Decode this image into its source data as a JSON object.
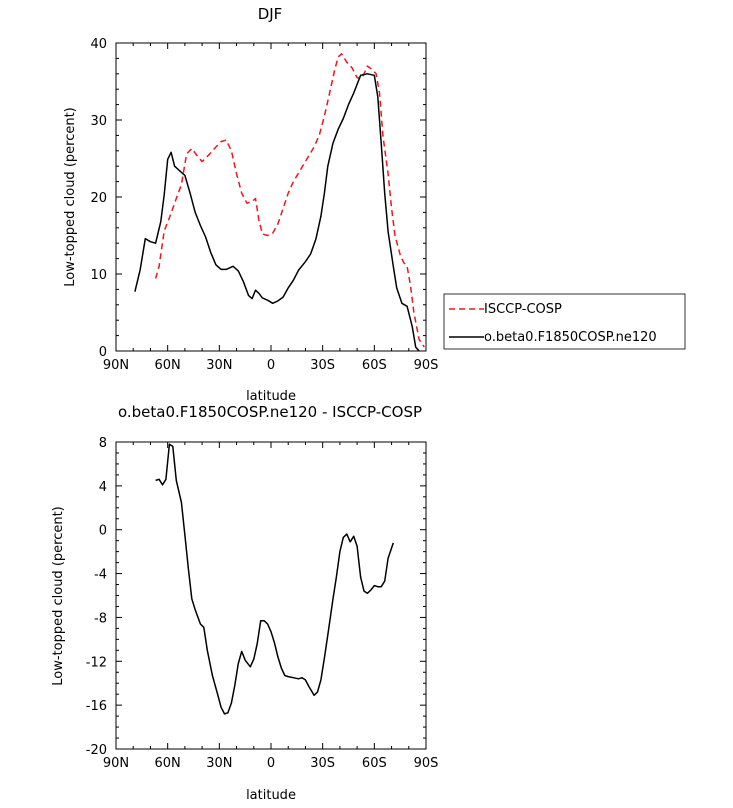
{
  "chart_data": [
    {
      "type": "line",
      "title": "DJF",
      "xlabel": "latitude",
      "ylabel": "Low-topped cloud (percent)",
      "xlim": [
        -90,
        90
      ],
      "ylim": [
        0,
        40
      ],
      "x_ticks": [
        {
          "value": -90,
          "label": "90N"
        },
        {
          "value": -60,
          "label": "60N"
        },
        {
          "value": -30,
          "label": "30N"
        },
        {
          "value": 0,
          "label": "0"
        },
        {
          "value": 30,
          "label": "30S"
        },
        {
          "value": 60,
          "label": "60S"
        },
        {
          "value": 90,
          "label": "90S"
        }
      ],
      "y_ticks": [
        {
          "value": 0,
          "label": "0"
        },
        {
          "value": 10,
          "label": "10"
        },
        {
          "value": 20,
          "label": "20"
        },
        {
          "value": 30,
          "label": "30"
        },
        {
          "value": 40,
          "label": "40"
        }
      ],
      "legend_position": "right",
      "series": [
        {
          "name": "ISCCP-COSP",
          "color": "#e8191e",
          "dash": true,
          "points": [
            [
              -67,
              9.4
            ],
            [
              -65,
              11
            ],
            [
              -62,
              15.6
            ],
            [
              -59,
              17.3
            ],
            [
              -55,
              19.8
            ],
            [
              -52,
              21.6
            ],
            [
              -49,
              25.6
            ],
            [
              -46,
              26.3
            ],
            [
              -43,
              25.4
            ],
            [
              -40,
              24.6
            ],
            [
              -36,
              25.5
            ],
            [
              -32,
              26.5
            ],
            [
              -29,
              27.2
            ],
            [
              -26,
              27.4
            ],
            [
              -23,
              26
            ],
            [
              -20,
              23
            ],
            [
              -17,
              20.5
            ],
            [
              -14,
              19.2
            ],
            [
              -11,
              19.4
            ],
            [
              -9,
              19.8
            ],
            [
              -7,
              17
            ],
            [
              -5,
              15.2
            ],
            [
              -2,
              15
            ],
            [
              1,
              15.3
            ],
            [
              4,
              16.5
            ],
            [
              7,
              18.5
            ],
            [
              10,
              20.5
            ],
            [
              13,
              22
            ],
            [
              17,
              23.5
            ],
            [
              21,
              25
            ],
            [
              25,
              26.5
            ],
            [
              28,
              28
            ],
            [
              31,
              30.5
            ],
            [
              34,
              33.5
            ],
            [
              37,
              36.5
            ],
            [
              39,
              38.2
            ],
            [
              41,
              38.6
            ],
            [
              44,
              37.5
            ],
            [
              47,
              36.8
            ],
            [
              50,
              35.5
            ],
            [
              53,
              35.5
            ],
            [
              56,
              37
            ],
            [
              59,
              36.5
            ],
            [
              61,
              36
            ],
            [
              63,
              33.5
            ],
            [
              65,
              28
            ],
            [
              68,
              23
            ],
            [
              70,
              18.5
            ],
            [
              72,
              15
            ],
            [
              75,
              12.5
            ],
            [
              77,
              11.5
            ],
            [
              79,
              11
            ],
            [
              81,
              8.5
            ],
            [
              83,
              5
            ],
            [
              86,
              1.5
            ],
            [
              89,
              0.5
            ]
          ]
        },
        {
          "name": "o.beta0.F1850COSP.ne120",
          "color": "#000000",
          "dash": false,
          "points": [
            [
              -79,
              7.7
            ],
            [
              -76,
              10.5
            ],
            [
              -73,
              14.6
            ],
            [
              -70,
              14.2
            ],
            [
              -67,
              14
            ],
            [
              -64,
              16.8
            ],
            [
              -62,
              20.3
            ],
            [
              -60,
              24.9
            ],
            [
              -58,
              25.8
            ],
            [
              -56,
              24
            ],
            [
              -53,
              23.4
            ],
            [
              -50,
              22.8
            ],
            [
              -47,
              20.5
            ],
            [
              -44,
              18
            ],
            [
              -41,
              16.3
            ],
            [
              -38,
              14.8
            ],
            [
              -35,
              12.8
            ],
            [
              -32,
              11.2
            ],
            [
              -29,
              10.6
            ],
            [
              -26,
              10.6
            ],
            [
              -22,
              11
            ],
            [
              -19,
              10.4
            ],
            [
              -16,
              9
            ],
            [
              -13,
              7.2
            ],
            [
              -11,
              6.8
            ],
            [
              -9,
              7.9
            ],
            [
              -7,
              7.5
            ],
            [
              -5,
              6.9
            ],
            [
              -2,
              6.6
            ],
            [
              1,
              6.2
            ],
            [
              4,
              6.5
            ],
            [
              7,
              7
            ],
            [
              10,
              8.2
            ],
            [
              13,
              9.2
            ],
            [
              16,
              10.5
            ],
            [
              20,
              11.6
            ],
            [
              23,
              12.6
            ],
            [
              26,
              14.5
            ],
            [
              29,
              17.5
            ],
            [
              31,
              20.5
            ],
            [
              33,
              24
            ],
            [
              36,
              27
            ],
            [
              39,
              28.8
            ],
            [
              42,
              30.2
            ],
            [
              45,
              32
            ],
            [
              48,
              33.5
            ],
            [
              52,
              35.8
            ],
            [
              56,
              36
            ],
            [
              60,
              35.8
            ],
            [
              62,
              33
            ],
            [
              64,
              27
            ],
            [
              66,
              20.5
            ],
            [
              68,
              15.5
            ],
            [
              71,
              11
            ],
            [
              73,
              8.2
            ],
            [
              76,
              6.2
            ],
            [
              79,
              5.8
            ],
            [
              82,
              3.2
            ],
            [
              84,
              0.5
            ],
            [
              86,
              0
            ]
          ]
        }
      ]
    },
    {
      "type": "line",
      "title": "o.beta0.F1850COSP.ne120 - ISCCP-COSP",
      "xlabel": "latitude",
      "ylabel": "Low-topped cloud (percent)",
      "xlim": [
        -90,
        90
      ],
      "ylim": [
        -20,
        8
      ],
      "x_ticks": [
        {
          "value": -90,
          "label": "90N"
        },
        {
          "value": -60,
          "label": "60N"
        },
        {
          "value": -30,
          "label": "30N"
        },
        {
          "value": 0,
          "label": "0"
        },
        {
          "value": 30,
          "label": "30S"
        },
        {
          "value": 60,
          "label": "60S"
        },
        {
          "value": 90,
          "label": "90S"
        }
      ],
      "y_ticks": [
        {
          "value": 8,
          "label": "8"
        },
        {
          "value": 4,
          "label": "4"
        },
        {
          "value": 0,
          "label": "0"
        },
        {
          "value": -4,
          "label": "-4"
        },
        {
          "value": -8,
          "label": "-8"
        },
        {
          "value": -12,
          "label": "-12"
        },
        {
          "value": -16,
          "label": "-16"
        },
        {
          "value": -20,
          "label": "-20"
        }
      ],
      "series": [
        {
          "name": "o.beta0.F1850COSP.ne120 - ISCCP-COSP",
          "color": "#000000",
          "dash": false,
          "points": [
            [
              -67,
              4.5
            ],
            [
              -65,
              4.6
            ],
            [
              -63,
              4.1
            ],
            [
              -61,
              4.6
            ],
            [
              -59,
              7.8
            ],
            [
              -57,
              7.6
            ],
            [
              -55,
              4.5
            ],
            [
              -52,
              2.5
            ],
            [
              -50,
              -0.5
            ],
            [
              -48,
              -3.5
            ],
            [
              -46,
              -6.3
            ],
            [
              -44,
              -7.3
            ],
            [
              -41,
              -8.6
            ],
            [
              -39,
              -8.9
            ],
            [
              -37,
              -11
            ],
            [
              -34,
              -13.3
            ],
            [
              -31,
              -15
            ],
            [
              -29,
              -16.2
            ],
            [
              -27,
              -16.8
            ],
            [
              -25,
              -16.7
            ],
            [
              -23,
              -15.8
            ],
            [
              -21,
              -14.2
            ],
            [
              -19,
              -12.2
            ],
            [
              -17,
              -11.1
            ],
            [
              -15,
              -11.9
            ],
            [
              -12,
              -12.5
            ],
            [
              -10,
              -11.8
            ],
            [
              -8,
              -10.4
            ],
            [
              -6,
              -8.3
            ],
            [
              -4,
              -8.3
            ],
            [
              -2,
              -8.6
            ],
            [
              0,
              -9.3
            ],
            [
              2,
              -10.3
            ],
            [
              4,
              -11.6
            ],
            [
              6,
              -12.6
            ],
            [
              8,
              -13.3
            ],
            [
              10,
              -13.4
            ],
            [
              13,
              -13.5
            ],
            [
              16,
              -13.6
            ],
            [
              18,
              -13.5
            ],
            [
              20,
              -13.7
            ],
            [
              22,
              -14.3
            ],
            [
              25,
              -15.1
            ],
            [
              27,
              -14.8
            ],
            [
              29,
              -13.7
            ],
            [
              31,
              -11.7
            ],
            [
              33,
              -9.6
            ],
            [
              36,
              -6.3
            ],
            [
              38,
              -4.3
            ],
            [
              40,
              -2
            ],
            [
              42,
              -0.7
            ],
            [
              44,
              -0.4
            ],
            [
              46,
              -1.1
            ],
            [
              48,
              -0.6
            ],
            [
              50,
              -1.5
            ],
            [
              52,
              -4.3
            ],
            [
              54,
              -5.6
            ],
            [
              56,
              -5.8
            ],
            [
              58,
              -5.5
            ],
            [
              60,
              -5.1
            ],
            [
              62,
              -5.2
            ],
            [
              64,
              -5.2
            ],
            [
              66,
              -4.7
            ],
            [
              68,
              -2.6
            ],
            [
              71,
              -1.2
            ]
          ]
        }
      ]
    }
  ]
}
